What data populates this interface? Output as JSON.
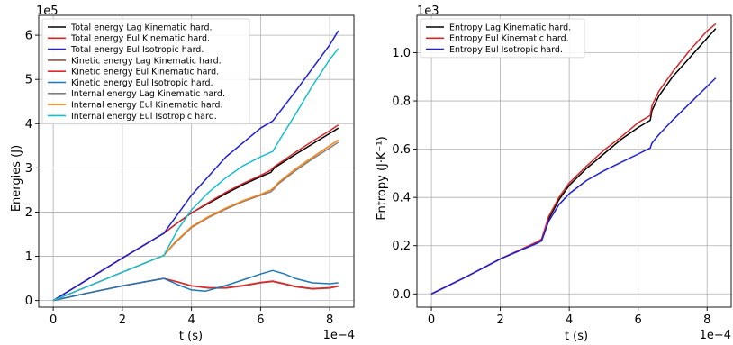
{
  "chart_data": [
    {
      "type": "line",
      "xlabel": "t (s)",
      "ylabel": "Energies (J)",
      "x_offset_label": "1e−4",
      "y_offset_label": "1e5",
      "xlim": [
        -0.42,
        8.7
      ],
      "ylim": [
        -0.15,
        6.45
      ],
      "xticks": [
        0,
        2,
        4,
        6,
        8
      ],
      "yticks": [
        0,
        1,
        2,
        3,
        4,
        5,
        6
      ],
      "grid": true,
      "legend": "top-left",
      "series": [
        {
          "name": "Total energy Lag Kinematic hard.",
          "color": "#000000",
          "x": [
            0,
            1,
            2,
            3.2,
            3.5,
            4,
            4.5,
            5,
            5.5,
            6,
            6.3,
            6.4,
            6.5,
            7,
            7.5,
            8,
            8.25
          ],
          "y": [
            0,
            0.48,
            0.96,
            1.52,
            1.7,
            1.98,
            2.2,
            2.42,
            2.62,
            2.8,
            2.9,
            3.0,
            3.05,
            3.3,
            3.54,
            3.78,
            3.9
          ]
        },
        {
          "name": "Total energy Eul Kinematic hard.",
          "color": "#d62728",
          "x": [
            0,
            1,
            2,
            3.2,
            3.5,
            4,
            4.5,
            5,
            5.5,
            6,
            6.3,
            6.4,
            6.5,
            7,
            7.5,
            8,
            8.25
          ],
          "y": [
            0,
            0.48,
            0.96,
            1.52,
            1.7,
            1.98,
            2.22,
            2.45,
            2.65,
            2.83,
            2.95,
            3.03,
            3.08,
            3.35,
            3.6,
            3.84,
            3.97
          ]
        },
        {
          "name": "Total energy Eul Isotropic hard.",
          "color": "#1f1fd6",
          "x": [
            0,
            1,
            2,
            3.2,
            4,
            5,
            6,
            6.35,
            7,
            8,
            8.25
          ],
          "y": [
            0,
            0.48,
            0.96,
            1.52,
            2.38,
            3.25,
            3.9,
            4.06,
            4.72,
            5.78,
            6.1
          ]
        },
        {
          "name": "Kinetic energy Lag Kinematic hard.",
          "color": "#8c564b",
          "x": [
            0,
            1,
            2,
            3.2,
            3.6,
            4,
            4.5,
            5,
            5.5,
            6,
            6.35,
            6.7,
            7,
            7.5,
            8,
            8.25
          ],
          "y": [
            0,
            0.17,
            0.33,
            0.5,
            0.42,
            0.33,
            0.28,
            0.28,
            0.33,
            0.4,
            0.43,
            0.37,
            0.31,
            0.26,
            0.28,
            0.32
          ]
        },
        {
          "name": "Kinetic energy Eul Kinematic hard.",
          "color": "#e0282c",
          "x": [
            0,
            1,
            2,
            3.2,
            3.6,
            4,
            4.5,
            5,
            5.5,
            6,
            6.35,
            6.7,
            7,
            7.5,
            8,
            8.25
          ],
          "y": [
            0,
            0.17,
            0.33,
            0.5,
            0.42,
            0.33,
            0.29,
            0.29,
            0.34,
            0.41,
            0.44,
            0.38,
            0.32,
            0.27,
            0.29,
            0.33
          ]
        },
        {
          "name": "Kinetic energy Eul Isotropic hard.",
          "color": "#1f77b4",
          "x": [
            0,
            1,
            2,
            3.2,
            3.6,
            4,
            4.4,
            5,
            5.5,
            6,
            6.35,
            6.7,
            7,
            7.5,
            8,
            8.25
          ],
          "y": [
            0,
            0.17,
            0.33,
            0.5,
            0.36,
            0.24,
            0.21,
            0.34,
            0.47,
            0.6,
            0.68,
            0.6,
            0.5,
            0.4,
            0.38,
            0.4
          ]
        },
        {
          "name": "Internal energy Lag Kinematic hard.",
          "color": "#7f7f7f",
          "x": [
            0,
            1,
            2,
            3.2,
            3.5,
            4,
            4.5,
            5,
            5.5,
            6,
            6.3,
            6.4,
            6.5,
            7,
            7.5,
            8,
            8.25
          ],
          "y": [
            0,
            0.32,
            0.64,
            1.02,
            1.28,
            1.65,
            1.88,
            2.07,
            2.24,
            2.38,
            2.46,
            2.53,
            2.63,
            2.93,
            3.2,
            3.45,
            3.58
          ]
        },
        {
          "name": "Internal energy Eul Kinematic hard.",
          "color": "#ff7f0e",
          "x": [
            0,
            1,
            2,
            3.2,
            3.5,
            4,
            4.5,
            5,
            5.5,
            6,
            6.3,
            6.4,
            6.5,
            7,
            7.5,
            8,
            8.25
          ],
          "y": [
            0,
            0.32,
            0.64,
            1.02,
            1.3,
            1.67,
            1.9,
            2.09,
            2.26,
            2.4,
            2.5,
            2.56,
            2.66,
            2.97,
            3.24,
            3.5,
            3.63
          ]
        },
        {
          "name": "Internal energy Eul Isotropic hard.",
          "color": "#17becf",
          "x": [
            0,
            1,
            2,
            3.2,
            3.6,
            4,
            4.5,
            5,
            5.5,
            6,
            6.35,
            6.6,
            7,
            7.5,
            8,
            8.25
          ],
          "y": [
            0,
            0.32,
            0.64,
            1.02,
            1.6,
            2.05,
            2.45,
            2.78,
            3.05,
            3.25,
            3.37,
            3.7,
            4.2,
            4.85,
            5.45,
            5.7
          ]
        }
      ]
    },
    {
      "type": "line",
      "xlabel": "t (s)",
      "ylabel": "Entropy (J·K⁻¹)",
      "x_offset_label": "1e−4",
      "y_offset_label": "1e3",
      "xlim": [
        -0.42,
        8.7
      ],
      "ylim": [
        -0.055,
        1.155
      ],
      "xticks": [
        0,
        2,
        4,
        6,
        8
      ],
      "yticks": [
        0.0,
        0.2,
        0.4,
        0.6,
        0.8,
        1.0
      ],
      "ytick_labels": [
        "0.0",
        "0.2",
        "0.4",
        "0.6",
        "0.8",
        "1.0"
      ],
      "grid": true,
      "legend": "top-left",
      "series": [
        {
          "name": "Entropy Lag Kinematic hard.",
          "color": "#000000",
          "x": [
            0,
            0.5,
            1,
            2,
            3.1,
            3.2,
            3.4,
            3.7,
            4,
            4.5,
            5,
            5.5,
            6,
            6.35,
            6.4,
            6.6,
            7,
            7.5,
            8,
            8.25
          ],
          "y": [
            0,
            0.035,
            0.07,
            0.145,
            0.215,
            0.225,
            0.31,
            0.39,
            0.45,
            0.52,
            0.58,
            0.64,
            0.69,
            0.72,
            0.76,
            0.82,
            0.9,
            0.98,
            1.06,
            1.1
          ]
        },
        {
          "name": "Entropy Eul Kinematic hard.",
          "color": "#d62728",
          "x": [
            0,
            0.5,
            1,
            2,
            3.1,
            3.2,
            3.4,
            3.7,
            4,
            4.5,
            5,
            5.5,
            6,
            6.35,
            6.4,
            6.6,
            7,
            7.5,
            8,
            8.25
          ],
          "y": [
            0,
            0.035,
            0.07,
            0.145,
            0.218,
            0.228,
            0.32,
            0.4,
            0.46,
            0.53,
            0.595,
            0.65,
            0.71,
            0.74,
            0.78,
            0.84,
            0.92,
            1.01,
            1.09,
            1.12
          ]
        },
        {
          "name": "Entropy Eul Isotropic hard.",
          "color": "#1f1fd6",
          "x": [
            0,
            0.5,
            1,
            2,
            3.1,
            3.2,
            3.4,
            3.7,
            4,
            4.5,
            5,
            5.5,
            6,
            6.35,
            6.4,
            6.6,
            7,
            7.5,
            8,
            8.25
          ],
          "y": [
            0,
            0.035,
            0.07,
            0.145,
            0.212,
            0.22,
            0.3,
            0.37,
            0.415,
            0.47,
            0.51,
            0.545,
            0.58,
            0.605,
            0.625,
            0.66,
            0.72,
            0.79,
            0.86,
            0.895
          ]
        }
      ]
    }
  ]
}
